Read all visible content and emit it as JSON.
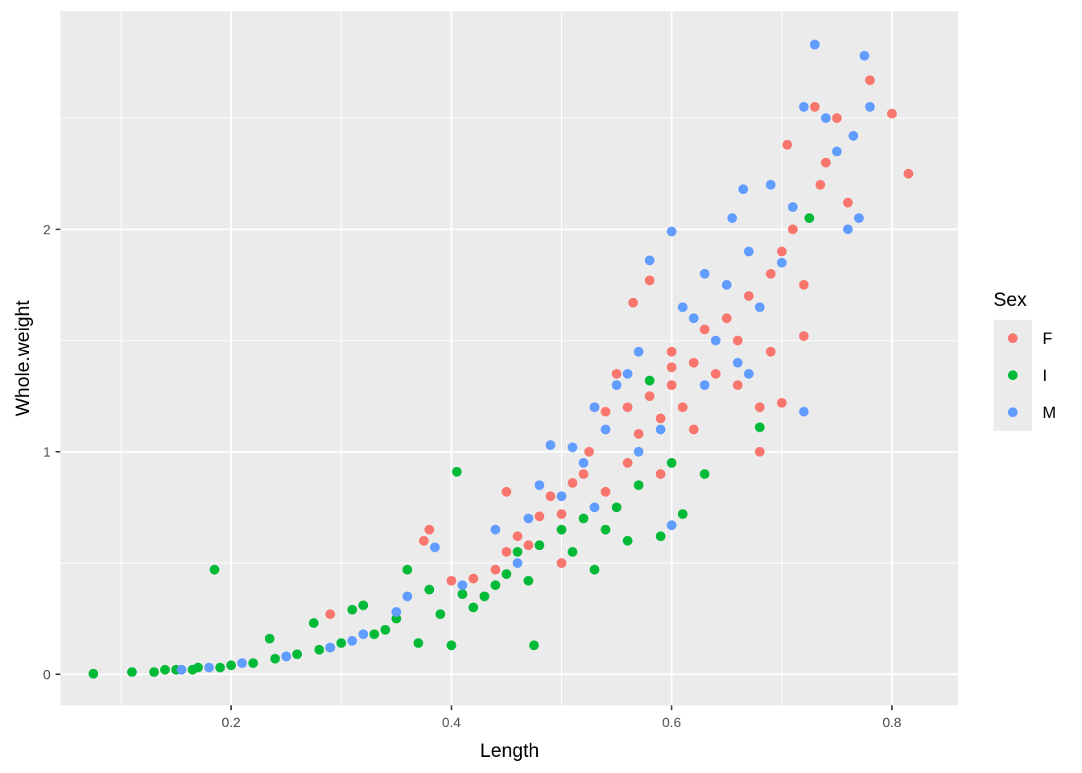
{
  "chart_data": {
    "type": "scatter",
    "title": "",
    "xlabel": "Length",
    "ylabel": "Whole.weight",
    "xlim": [
      0.045,
      0.86
    ],
    "ylim": [
      -0.14,
      2.98
    ],
    "x_ticks": [
      0.2,
      0.4,
      0.6,
      0.8
    ],
    "x_tick_labels": [
      "0.2",
      "0.4",
      "0.6",
      "0.8"
    ],
    "y_ticks": [
      0,
      1,
      2
    ],
    "y_tick_labels": [
      "0",
      "1",
      "2"
    ],
    "grid": true,
    "legend_position": "right",
    "legend_title": "Sex",
    "series": [
      {
        "name": "F",
        "color": "#F8766D",
        "points": [
          [
            0.29,
            0.27
          ],
          [
            0.375,
            0.6
          ],
          [
            0.38,
            0.65
          ],
          [
            0.4,
            0.42
          ],
          [
            0.42,
            0.43
          ],
          [
            0.44,
            0.47
          ],
          [
            0.45,
            0.55
          ],
          [
            0.45,
            0.82
          ],
          [
            0.46,
            0.62
          ],
          [
            0.47,
            0.58
          ],
          [
            0.48,
            0.71
          ],
          [
            0.49,
            0.8
          ],
          [
            0.5,
            0.72
          ],
          [
            0.51,
            0.86
          ],
          [
            0.52,
            0.9
          ],
          [
            0.525,
            1.0
          ],
          [
            0.53,
            1.2
          ],
          [
            0.54,
            1.18
          ],
          [
            0.55,
            1.35
          ],
          [
            0.56,
            1.2
          ],
          [
            0.565,
            1.67
          ],
          [
            0.57,
            1.08
          ],
          [
            0.58,
            1.25
          ],
          [
            0.58,
            1.77
          ],
          [
            0.59,
            1.15
          ],
          [
            0.6,
            1.3
          ],
          [
            0.6,
            1.45
          ],
          [
            0.61,
            1.2
          ],
          [
            0.62,
            1.4
          ],
          [
            0.63,
            1.55
          ],
          [
            0.64,
            1.35
          ],
          [
            0.65,
            1.6
          ],
          [
            0.66,
            1.5
          ],
          [
            0.67,
            1.7
          ],
          [
            0.68,
            1.0
          ],
          [
            0.69,
            1.8
          ],
          [
            0.7,
            1.9
          ],
          [
            0.71,
            2.0
          ],
          [
            0.705,
            2.38
          ],
          [
            0.72,
            1.75
          ],
          [
            0.73,
            2.55
          ],
          [
            0.735,
            2.2
          ],
          [
            0.74,
            2.3
          ],
          [
            0.75,
            2.5
          ],
          [
            0.76,
            2.12
          ],
          [
            0.78,
            2.67
          ],
          [
            0.8,
            2.52
          ],
          [
            0.815,
            2.25
          ],
          [
            0.7,
            1.22
          ],
          [
            0.68,
            1.2
          ],
          [
            0.6,
            1.38
          ],
          [
            0.62,
            1.1
          ],
          [
            0.5,
            0.5
          ],
          [
            0.43,
            0.35
          ],
          [
            0.56,
            0.95
          ],
          [
            0.66,
            1.3
          ],
          [
            0.72,
            1.52
          ],
          [
            0.69,
            1.45
          ],
          [
            0.59,
            0.9
          ],
          [
            0.54,
            0.82
          ]
        ]
      },
      {
        "name": "I",
        "color": "#00BA38",
        "points": [
          [
            0.075,
            0.002
          ],
          [
            0.11,
            0.01
          ],
          [
            0.13,
            0.01
          ],
          [
            0.14,
            0.02
          ],
          [
            0.15,
            0.02
          ],
          [
            0.17,
            0.03
          ],
          [
            0.185,
            0.47
          ],
          [
            0.19,
            0.03
          ],
          [
            0.2,
            0.04
          ],
          [
            0.22,
            0.05
          ],
          [
            0.235,
            0.16
          ],
          [
            0.24,
            0.07
          ],
          [
            0.26,
            0.09
          ],
          [
            0.275,
            0.23
          ],
          [
            0.28,
            0.11
          ],
          [
            0.3,
            0.14
          ],
          [
            0.31,
            0.29
          ],
          [
            0.32,
            0.31
          ],
          [
            0.33,
            0.18
          ],
          [
            0.35,
            0.25
          ],
          [
            0.36,
            0.47
          ],
          [
            0.37,
            0.14
          ],
          [
            0.38,
            0.38
          ],
          [
            0.4,
            0.13
          ],
          [
            0.405,
            0.91
          ],
          [
            0.42,
            0.3
          ],
          [
            0.43,
            0.35
          ],
          [
            0.44,
            0.4
          ],
          [
            0.45,
            0.45
          ],
          [
            0.46,
            0.55
          ],
          [
            0.475,
            0.13
          ],
          [
            0.48,
            0.58
          ],
          [
            0.5,
            0.65
          ],
          [
            0.52,
            0.7
          ],
          [
            0.53,
            0.47
          ],
          [
            0.55,
            0.75
          ],
          [
            0.56,
            0.6
          ],
          [
            0.57,
            0.85
          ],
          [
            0.58,
            1.32
          ],
          [
            0.59,
            0.62
          ],
          [
            0.6,
            0.95
          ],
          [
            0.61,
            0.72
          ],
          [
            0.63,
            0.9
          ],
          [
            0.68,
            1.11
          ],
          [
            0.725,
            2.05
          ],
          [
            0.34,
            0.2
          ],
          [
            0.39,
            0.27
          ],
          [
            0.41,
            0.36
          ],
          [
            0.47,
            0.42
          ],
          [
            0.51,
            0.55
          ],
          [
            0.54,
            0.65
          ],
          [
            0.29,
            0.12
          ],
          [
            0.25,
            0.08
          ],
          [
            0.165,
            0.02
          ]
        ]
      },
      {
        "name": "M",
        "color": "#619CFF",
        "points": [
          [
            0.155,
            0.02
          ],
          [
            0.18,
            0.03
          ],
          [
            0.21,
            0.05
          ],
          [
            0.25,
            0.08
          ],
          [
            0.29,
            0.12
          ],
          [
            0.32,
            0.18
          ],
          [
            0.35,
            0.28
          ],
          [
            0.385,
            0.57
          ],
          [
            0.41,
            0.4
          ],
          [
            0.44,
            0.65
          ],
          [
            0.46,
            0.5
          ],
          [
            0.48,
            0.85
          ],
          [
            0.49,
            1.03
          ],
          [
            0.5,
            0.8
          ],
          [
            0.51,
            1.02
          ],
          [
            0.52,
            0.95
          ],
          [
            0.53,
            1.2
          ],
          [
            0.54,
            1.1
          ],
          [
            0.55,
            1.3
          ],
          [
            0.56,
            1.35
          ],
          [
            0.57,
            1.45
          ],
          [
            0.58,
            1.86
          ],
          [
            0.6,
            1.99
          ],
          [
            0.6,
            0.67
          ],
          [
            0.61,
            1.65
          ],
          [
            0.62,
            1.6
          ],
          [
            0.63,
            1.8
          ],
          [
            0.64,
            1.5
          ],
          [
            0.65,
            1.75
          ],
          [
            0.66,
            1.4
          ],
          [
            0.665,
            2.18
          ],
          [
            0.67,
            1.9
          ],
          [
            0.68,
            1.65
          ],
          [
            0.69,
            2.2
          ],
          [
            0.7,
            1.85
          ],
          [
            0.71,
            2.1
          ],
          [
            0.72,
            1.18
          ],
          [
            0.72,
            2.55
          ],
          [
            0.73,
            2.83
          ],
          [
            0.74,
            2.5
          ],
          [
            0.75,
            2.35
          ],
          [
            0.76,
            2.0
          ],
          [
            0.765,
            2.42
          ],
          [
            0.775,
            2.78
          ],
          [
            0.78,
            2.55
          ],
          [
            0.77,
            2.05
          ],
          [
            0.655,
            2.05
          ],
          [
            0.59,
            1.1
          ],
          [
            0.67,
            1.35
          ],
          [
            0.63,
            1.3
          ],
          [
            0.57,
            1.0
          ],
          [
            0.53,
            0.75
          ],
          [
            0.47,
            0.7
          ],
          [
            0.36,
            0.35
          ],
          [
            0.31,
            0.15
          ]
        ]
      }
    ]
  }
}
